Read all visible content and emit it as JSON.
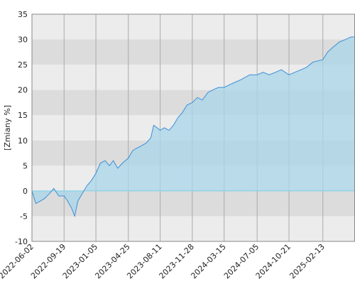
{
  "chart_data": {
    "type": "area",
    "y_label": "[Zmiany %]",
    "x": [
      "2022-06-02",
      "2022-06-15",
      "2022-07-01",
      "2022-07-15",
      "2022-08-01",
      "2022-08-15",
      "2022-09-01",
      "2022-09-19",
      "2022-10-01",
      "2022-10-15",
      "2022-10-25",
      "2022-11-05",
      "2022-11-20",
      "2022-12-05",
      "2022-12-20",
      "2023-01-05",
      "2023-01-20",
      "2023-02-05",
      "2023-02-20",
      "2023-03-05",
      "2023-03-20",
      "2023-04-05",
      "2023-04-25",
      "2023-05-10",
      "2023-05-25",
      "2023-06-10",
      "2023-06-25",
      "2023-07-10",
      "2023-07-20",
      "2023-08-01",
      "2023-08-11",
      "2023-08-25",
      "2023-09-10",
      "2023-09-25",
      "2023-10-10",
      "2023-10-25",
      "2023-11-10",
      "2023-11-28",
      "2023-12-15",
      "2024-01-01",
      "2024-01-20",
      "2024-02-05",
      "2024-02-25",
      "2024-03-15",
      "2024-04-01",
      "2024-04-20",
      "2024-05-10",
      "2024-05-25",
      "2024-06-10",
      "2024-07-05",
      "2024-07-25",
      "2024-08-15",
      "2024-09-05",
      "2024-09-25",
      "2024-10-21",
      "2024-11-10",
      "2024-12-01",
      "2024-12-20",
      "2025-01-10",
      "2025-02-13",
      "2025-03-01",
      "2025-03-20",
      "2025-04-10",
      "2025-05-01",
      "2025-05-20",
      "2025-06-01"
    ],
    "series": [
      {
        "color": "#3d8fd8",
        "fill": "#a8d6ea",
        "values": [
          0,
          -2.5,
          -2,
          -1.5,
          -0.5,
          0.5,
          -1,
          -1,
          -2,
          -3.5,
          -5,
          -2,
          -0.5,
          1,
          2,
          3.5,
          5.5,
          6,
          5,
          6,
          4.5,
          5.5,
          6.5,
          8,
          8.5,
          9,
          9.5,
          10.5,
          13,
          12.5,
          12,
          12.5,
          12,
          13,
          14.5,
          15.5,
          17,
          17.5,
          18.5,
          18,
          19.5,
          20,
          20.5,
          20.5,
          21,
          21.5,
          22,
          22.5,
          23,
          23,
          23.5,
          23,
          23.5,
          24,
          23,
          23.5,
          24,
          24.5,
          25.5,
          26,
          27.5,
          28.5,
          29.5,
          30,
          30.5,
          30.5
        ]
      }
    ],
    "xlim": [
      "2022-06-02",
      "2025-06-02"
    ],
    "xticks": [
      "2022-06-02",
      "2022-09-19",
      "2023-01-05",
      "2023-04-25",
      "2023-08-11",
      "2023-11-28",
      "2024-03-15",
      "2024-07-05",
      "2024-10-21",
      "2025-02-13"
    ],
    "ylim": [
      -10,
      35
    ],
    "yticks": [
      -10,
      -5,
      0,
      5,
      10,
      15,
      20,
      25,
      30,
      35
    ],
    "grid": true
  }
}
